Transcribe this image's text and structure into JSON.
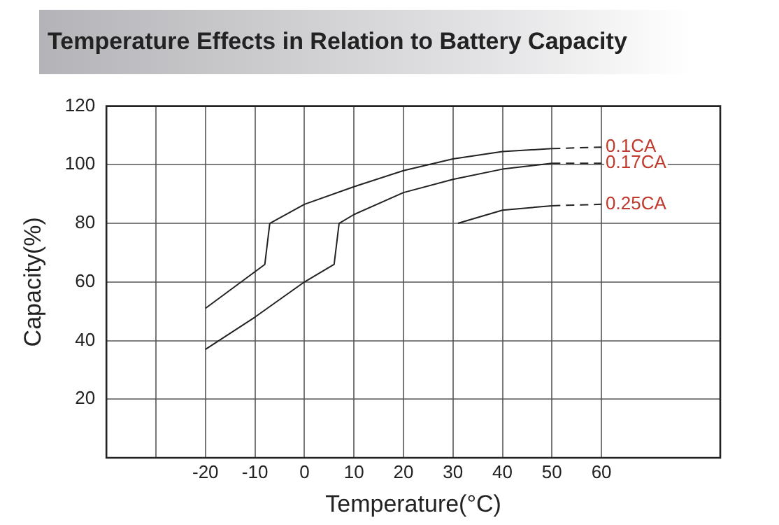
{
  "chart_data": {
    "type": "line",
    "title": "Temperature Effects in Relation to Battery Capacity",
    "xlabel": "Temperature(°C)",
    "ylabel": "Capacity(%)",
    "xlim": [
      -40,
      84
    ],
    "xticks": [
      {
        "value": -30,
        "label": null
      },
      -20,
      -10,
      0,
      10,
      20,
      30,
      40,
      50,
      60
    ],
    "ylim": [
      0,
      120
    ],
    "yticks": [
      20,
      40,
      60,
      80,
      100,
      120
    ],
    "grid": true,
    "legend": false,
    "marker": "none",
    "series": [
      {
        "color": "#222222",
        "line_style": "solid",
        "x": [
          -20,
          -8,
          -7,
          0,
          10,
          20,
          30,
          40,
          50
        ],
        "values": [
          51,
          66,
          80,
          86.5,
          92.5,
          98,
          102,
          104.5,
          105.5
        ]
      },
      {
        "name": "0.1CA",
        "color": "#222222",
        "line_style": "dashed",
        "x": [
          50,
          60
        ],
        "values": [
          105.5,
          106
        ]
      },
      {
        "color": "#222222",
        "line_style": "solid",
        "x": [
          -20,
          -10,
          0,
          6,
          7,
          10,
          20,
          30,
          40,
          50
        ],
        "values": [
          37,
          48,
          60,
          66,
          80,
          83,
          90.5,
          95,
          98.5,
          100.5
        ]
      },
      {
        "name": "0.17CA",
        "color": "#222222",
        "line_style": "dashed",
        "x": [
          50,
          60
        ],
        "values": [
          100.5,
          100.5
        ]
      },
      {
        "color": "#222222",
        "line_style": "solid",
        "x": [
          31,
          40,
          50
        ],
        "values": [
          80,
          84.5,
          86
        ]
      },
      {
        "name": "0.25CA",
        "color": "#222222",
        "line_style": "dashed",
        "x": [
          50,
          60
        ],
        "values": [
          86,
          86.5
        ]
      }
    ]
  }
}
